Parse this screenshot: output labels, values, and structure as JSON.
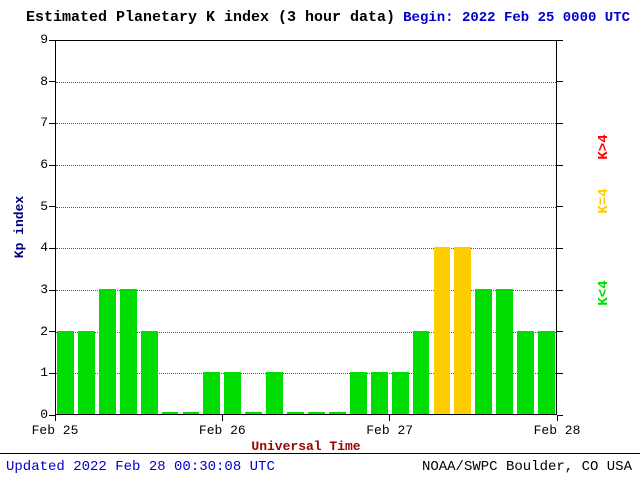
{
  "header": {
    "title": "Estimated Planetary K index (3 hour data)",
    "begin_label": "Begin:",
    "begin_value": "2022 Feb 25 0000 UTC"
  },
  "axes": {
    "y_label": "Kp index",
    "x_label": "Universal Time"
  },
  "legend": [
    {
      "label": "K>4",
      "color": "#ff0000"
    },
    {
      "label": "K=4",
      "color": "#ffcc00"
    },
    {
      "label": "K<4",
      "color": "#00dd00"
    }
  ],
  "footer": {
    "updated": "Updated 2022 Feb 28 00:30:08 UTC",
    "source": "NOAA/SWPC Boulder, CO USA"
  },
  "colors": {
    "green": "#00dd00",
    "yellow": "#ffcc00",
    "red": "#ff0000",
    "grid": "#555555",
    "axis": "#000000",
    "y_label_navy": "#000080",
    "x_label_maroon": "#990000",
    "timestamp_blue": "#0000cc"
  },
  "chart_data": {
    "type": "bar",
    "title": "Estimated Planetary K index (3 hour data)",
    "xlabel": "Universal Time",
    "ylabel": "Kp index",
    "ylim": [
      0,
      9
    ],
    "y_ticks": [
      0,
      1,
      2,
      3,
      4,
      5,
      6,
      7,
      8,
      9
    ],
    "x_tick_labels": [
      "Feb 25",
      "Feb 26",
      "Feb 27",
      "Feb 28"
    ],
    "bars_per_day": 8,
    "interval_hours": 3,
    "begin": "2022 Feb 25 0000 UTC",
    "threshold": 4,
    "values": [
      2,
      2,
      3,
      3,
      2,
      0,
      0,
      1,
      1,
      0,
      1,
      0,
      0,
      0,
      1,
      1,
      1,
      2,
      4,
      4,
      3,
      3,
      2,
      2
    ],
    "color_rule": {
      "below_threshold": "green",
      "at_threshold": "yellow",
      "above_threshold": "red"
    },
    "grid": "dotted horizontal lines at each integer Kp value",
    "legend_position": "right"
  }
}
